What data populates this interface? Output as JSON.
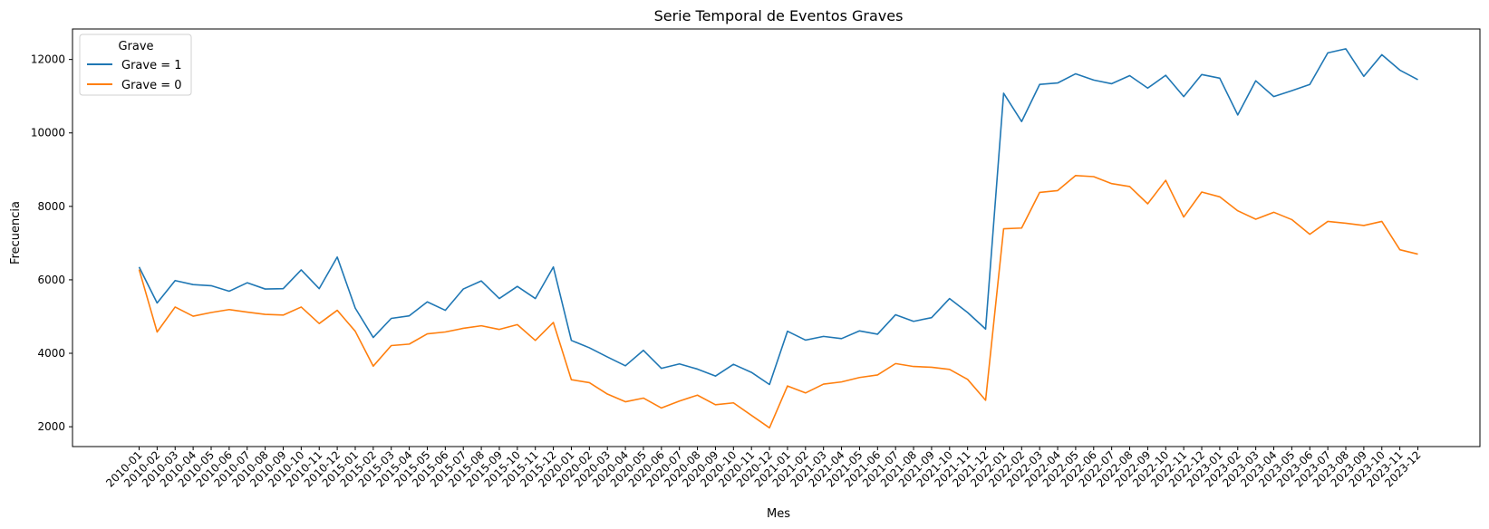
{
  "chart_data": {
    "type": "line",
    "title": "Serie Temporal de Eventos Graves",
    "xlabel": "Mes",
    "ylabel": "Frecuencia",
    "ylim": [
      1460,
      12830
    ],
    "yticks": [
      2000,
      4000,
      6000,
      8000,
      10000,
      12000
    ],
    "grid": false,
    "legend_title": "Grave",
    "legend_position": "top-left",
    "x": [
      "2010-01",
      "2010-02",
      "2010-03",
      "2010-04",
      "2010-05",
      "2010-06",
      "2010-07",
      "2010-08",
      "2010-09",
      "2010-10",
      "2010-11",
      "2010-12",
      "2015-01",
      "2015-02",
      "2015-03",
      "2015-04",
      "2015-05",
      "2015-06",
      "2015-07",
      "2015-08",
      "2015-09",
      "2015-10",
      "2015-11",
      "2015-12",
      "2020-01",
      "2020-02",
      "2020-03",
      "2020-04",
      "2020-05",
      "2020-06",
      "2020-07",
      "2020-08",
      "2020-09",
      "2020-10",
      "2020-11",
      "2020-12",
      "2021-01",
      "2021-02",
      "2021-03",
      "2021-04",
      "2021-05",
      "2021-06",
      "2021-07",
      "2021-08",
      "2021-09",
      "2021-10",
      "2021-11",
      "2021-12",
      "2022-01",
      "2022-02",
      "2022-03",
      "2022-04",
      "2022-05",
      "2022-06",
      "2022-07",
      "2022-08",
      "2022-09",
      "2022-10",
      "2022-11",
      "2022-12",
      "2023-01",
      "2023-02",
      "2023-03",
      "2023-04",
      "2023-05",
      "2023-06",
      "2023-07",
      "2023-08",
      "2023-09",
      "2023-10",
      "2023-11",
      "2023-12"
    ],
    "series": [
      {
        "name": "Grave = 1",
        "color": "#1f77b4",
        "values": [
          6350,
          5370,
          5980,
          5870,
          5840,
          5690,
          5920,
          5750,
          5760,
          6270,
          5760,
          6620,
          5230,
          4430,
          4950,
          5020,
          5400,
          5170,
          5750,
          5970,
          5490,
          5820,
          5490,
          6350,
          4350,
          4150,
          3900,
          3660,
          4080,
          3590,
          3710,
          3570,
          3380,
          3700,
          3480,
          3150,
          4600,
          4360,
          4460,
          4400,
          4610,
          4520,
          5050,
          4870,
          4970,
          5490,
          5110,
          4660,
          11080,
          10310,
          11320,
          11360,
          11610,
          11440,
          11340,
          11560,
          11220,
          11570,
          10990,
          11590,
          11490,
          10490,
          11420,
          10990,
          11150,
          11320,
          12180,
          12290,
          11540,
          12130,
          11710,
          11450
        ]
      },
      {
        "name": "Grave = 0",
        "color": "#ff7f0e",
        "values": [
          6280,
          4580,
          5260,
          5010,
          5110,
          5190,
          5120,
          5060,
          5040,
          5260,
          4810,
          5170,
          4600,
          3650,
          4210,
          4250,
          4530,
          4580,
          4680,
          4750,
          4650,
          4780,
          4350,
          4840,
          3280,
          3200,
          2890,
          2680,
          2780,
          2510,
          2700,
          2860,
          2600,
          2650,
          2310,
          1970,
          3110,
          2920,
          3160,
          3220,
          3340,
          3410,
          3720,
          3640,
          3620,
          3560,
          3290,
          2720,
          7390,
          7410,
          8380,
          8430,
          8840,
          8810,
          8620,
          8540,
          8070,
          8710,
          7710,
          8390,
          8260,
          7880,
          7650,
          7840,
          7640,
          7240,
          7590,
          7540,
          7480,
          7590,
          6820,
          6700
        ]
      }
    ]
  }
}
